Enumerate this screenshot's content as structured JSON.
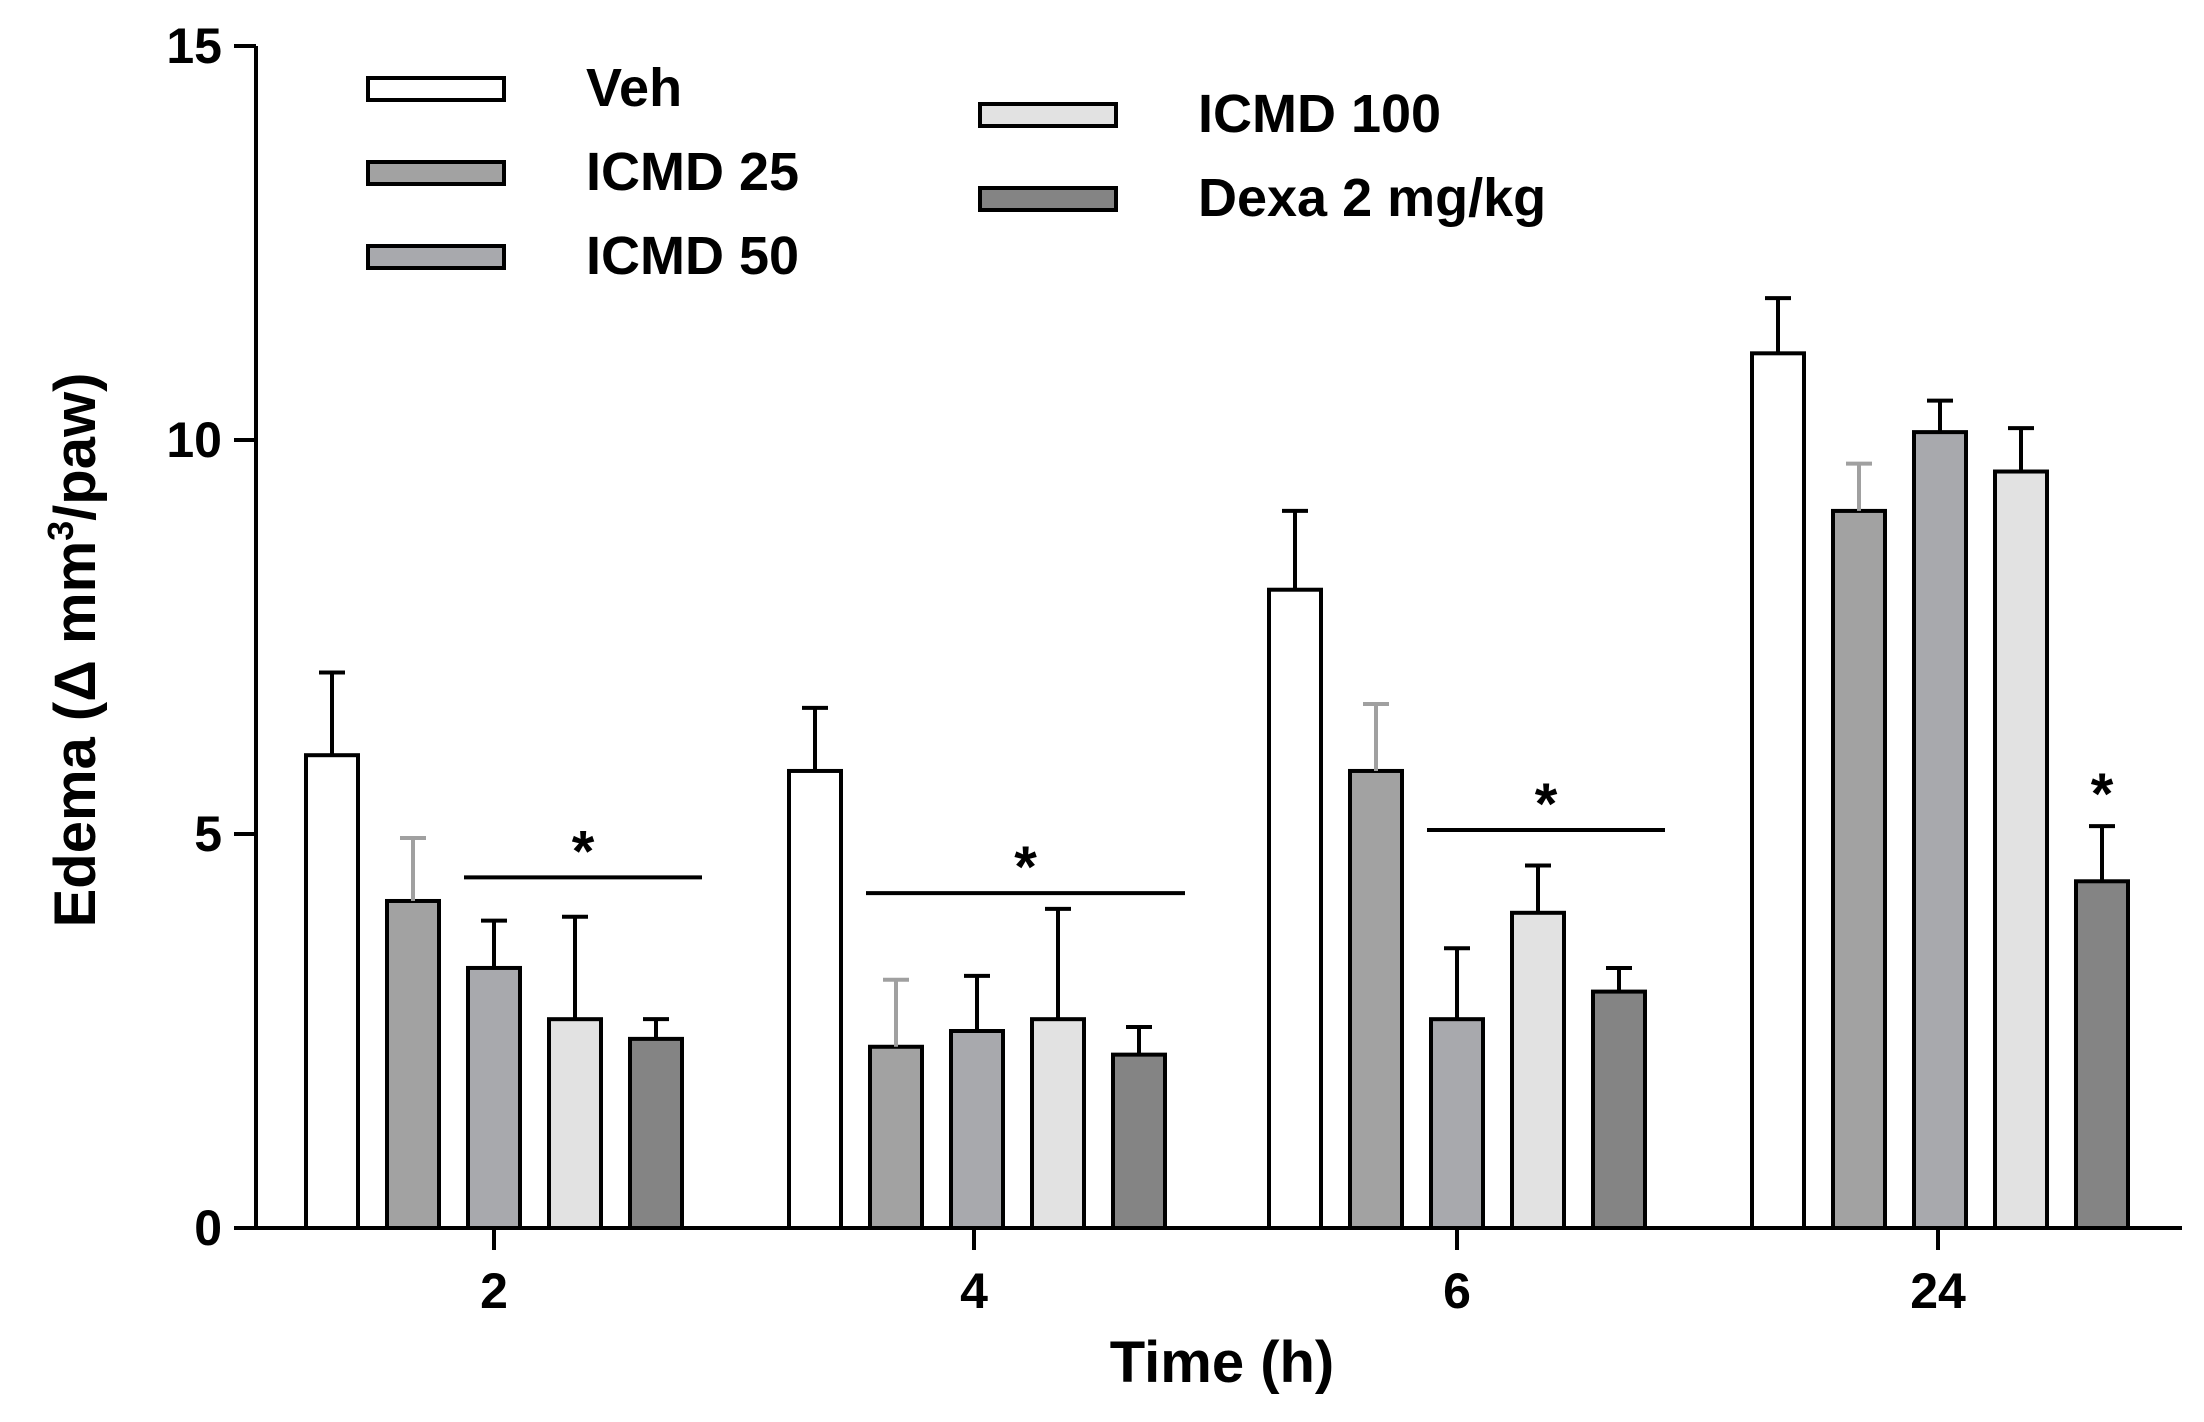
{
  "chart_data": {
    "type": "bar",
    "title": "",
    "xlabel": "Time (h)",
    "ylabel": "Edema (Δ mm³/paw)",
    "ylabel_parts": {
      "before": "Edema (Δ mm",
      "sup": "3",
      "after": "/paw)"
    },
    "ylim": [
      0,
      15
    ],
    "yticks": [
      0,
      5,
      10,
      15
    ],
    "grid": false,
    "legend_position": "top-left",
    "categories": [
      "2",
      "4",
      "6",
      "24"
    ],
    "series": [
      {
        "name": "Veh",
        "color": "#ffffff",
        "values": [
          6.0,
          5.8,
          8.1,
          11.1
        ],
        "errors": [
          1.05,
          0.8,
          1.0,
          0.7
        ],
        "error_color": "#000000"
      },
      {
        "name": "ICMD 25",
        "color": "#a2a2a2",
        "values": [
          4.15,
          2.3,
          5.8,
          9.1
        ],
        "errors": [
          0.8,
          0.85,
          0.85,
          0.6
        ],
        "error_color": "#a0a0a0"
      },
      {
        "name": "ICMD 50",
        "color": "#a8a9ad",
        "values": [
          3.3,
          2.5,
          2.65,
          10.1
        ],
        "errors": [
          0.6,
          0.7,
          0.9,
          0.4
        ],
        "error_color": "#000000"
      },
      {
        "name": "ICMD 100",
        "color": "#e2e2e2",
        "values": [
          2.65,
          2.65,
          4.0,
          9.6
        ],
        "errors": [
          1.3,
          1.4,
          0.6,
          0.55
        ],
        "error_color": "#000000"
      },
      {
        "name": "Dexa 2 mg/kg",
        "color": "#848484",
        "values": [
          2.4,
          2.2,
          3.0,
          4.4
        ],
        "errors": [
          0.25,
          0.35,
          0.3,
          0.7
        ],
        "error_color": "#000000"
      }
    ],
    "annotations": [
      {
        "category": "2",
        "text": "*",
        "line_value": 4.45,
        "from_series": 2,
        "to_series": 4
      },
      {
        "category": "4",
        "text": "*",
        "line_value": 4.25,
        "from_series": 1,
        "to_series": 4
      },
      {
        "category": "6",
        "text": "*",
        "line_value": 5.05,
        "from_series": 2,
        "to_series": 4
      },
      {
        "category": "24",
        "text": "*",
        "line_value": null,
        "series": 4
      }
    ]
  }
}
